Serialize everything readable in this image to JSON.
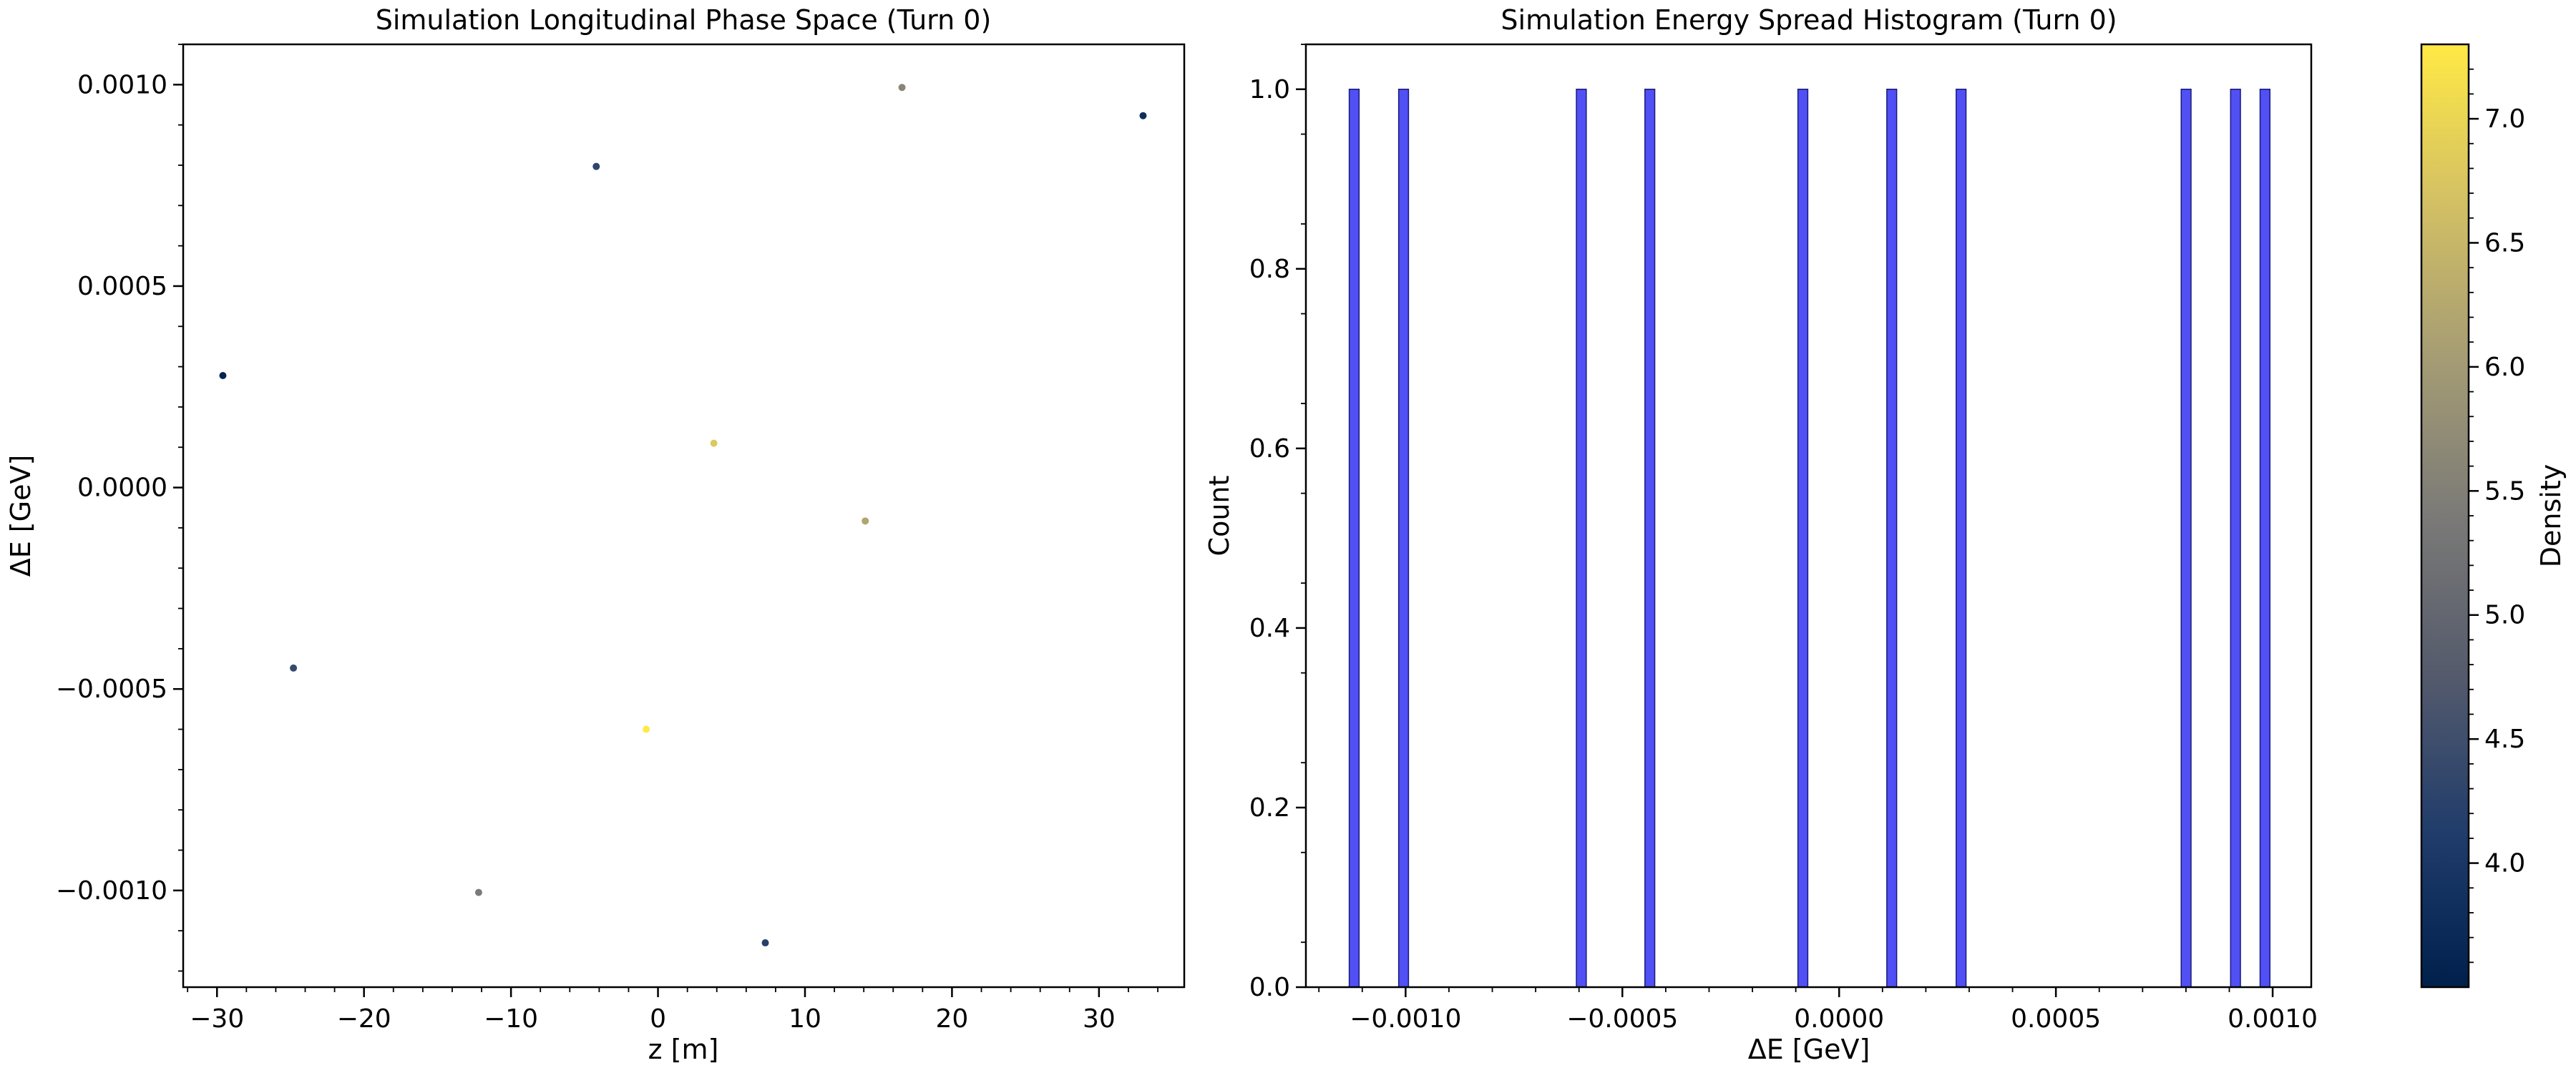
{
  "chart_data": [
    {
      "type": "scatter",
      "title": "Simulation Longitudinal Phase Space (Turn 0)",
      "xlabel": "z [m]",
      "ylabel": "ΔE [GeV]",
      "xlim": [
        -32.3,
        35.8
      ],
      "ylim": [
        -0.00124,
        0.0011
      ],
      "xticks": [
        -30,
        -20,
        -10,
        0,
        10,
        20,
        30
      ],
      "xtick_labels": [
        "−30",
        "−20",
        "−10",
        "0",
        "10",
        "20",
        "30"
      ],
      "yticks": [
        -0.001,
        -0.0005,
        0.0,
        0.0005,
        0.001
      ],
      "ytick_labels": [
        "−0.0010",
        "−0.0005",
        "0.0000",
        "0.0005",
        "0.0010"
      ],
      "grid": false,
      "points": [
        {
          "x": -29.6,
          "y": 0.000278,
          "density": 3.6
        },
        {
          "x": -24.8,
          "y": -0.000448,
          "density": 4.4
        },
        {
          "x": -12.2,
          "y": -0.001005,
          "density": 5.4
        },
        {
          "x": -4.2,
          "y": 0.000797,
          "density": 4.3
        },
        {
          "x": -0.8,
          "y": -0.0006,
          "density": 7.3
        },
        {
          "x": 3.8,
          "y": 0.00011,
          "density": 6.8
        },
        {
          "x": 7.3,
          "y": -0.00113,
          "density": 4.2
        },
        {
          "x": 14.1,
          "y": -8.3e-05,
          "density": 6.2
        },
        {
          "x": 16.6,
          "y": 0.000993,
          "density": 5.6
        },
        {
          "x": 33.0,
          "y": 0.000923,
          "density": 3.8
        }
      ]
    },
    {
      "type": "bar",
      "title": "Simulation Energy Spread Histogram (Turn 0)",
      "xlabel": "ΔE [GeV]",
      "ylabel": "Count",
      "xlim": [
        -0.00123,
        0.001089
      ],
      "ylim": [
        0,
        1.05
      ],
      "xticks": [
        -0.001,
        -0.0005,
        0.0,
        0.0005,
        0.001
      ],
      "xtick_labels": [
        "−0.0010",
        "−0.0005",
        "0.0000",
        "0.0005",
        "0.0010"
      ],
      "yticks": [
        0.0,
        0.2,
        0.4,
        0.6,
        0.8,
        1.0
      ],
      "ytick_labels": [
        "0.0",
        "0.2",
        "0.4",
        "0.6",
        "0.8",
        "1.0"
      ],
      "bar_color": "#5050f5",
      "bar_edge_color": "#1a1a7a",
      "bin_width": 2.27e-05,
      "bins": [
        {
          "x0": -0.00113,
          "count": 1
        },
        {
          "x0": -0.001016,
          "count": 1
        },
        {
          "x0": -0.000606,
          "count": 1
        },
        {
          "x0": -0.000448,
          "count": 1
        },
        {
          "x0": -9.5e-05,
          "count": 1
        },
        {
          "x0": 0.00011,
          "count": 1
        },
        {
          "x0": 0.00027,
          "count": 1
        },
        {
          "x0": 0.000789,
          "count": 1
        },
        {
          "x0": 0.000903,
          "count": 1
        },
        {
          "x0": 0.000971,
          "count": 1
        }
      ]
    },
    {
      "type": "colorbar",
      "label": "Density",
      "range": [
        3.5,
        7.3
      ],
      "ticks": [
        4.0,
        4.5,
        5.0,
        5.5,
        6.0,
        6.5,
        7.0
      ],
      "tick_labels": [
        "4.0",
        "4.5",
        "5.0",
        "5.5",
        "6.0",
        "6.5",
        "7.0"
      ],
      "colormap": "cividis",
      "colormap_stops": [
        "#00204c",
        "#213d6b",
        "#555b6c",
        "#7b7a77",
        "#a59c74",
        "#d3c064",
        "#ffe945"
      ]
    }
  ]
}
